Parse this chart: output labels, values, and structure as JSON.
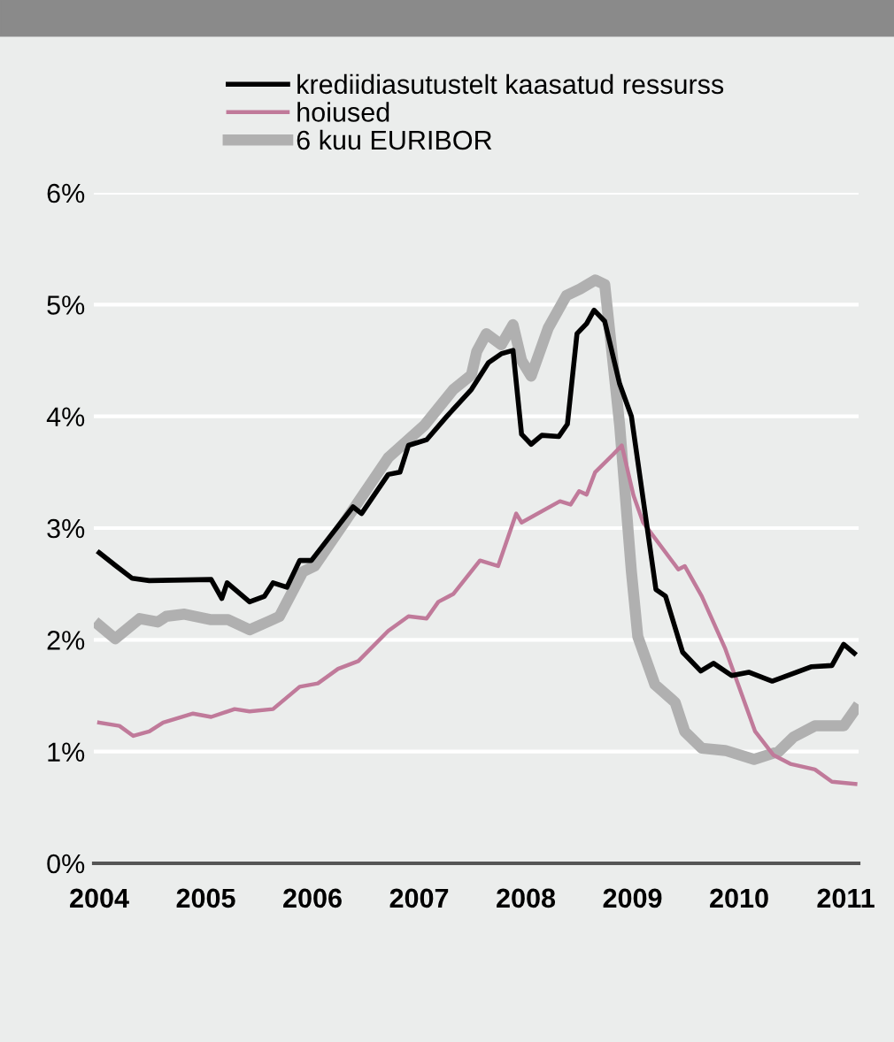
{
  "chart_data": {
    "type": "line",
    "xlim": [
      2003.95,
      2011.12
    ],
    "xticks": [
      2004,
      2005,
      2006,
      2007,
      2008,
      2009,
      2010,
      2011
    ],
    "ylim": [
      0,
      6
    ],
    "yticks": [
      {
        "value": 0,
        "label": "0%"
      },
      {
        "value": 1,
        "label": "1%"
      },
      {
        "value": 2,
        "label": "2%"
      },
      {
        "value": 3,
        "label": "3%"
      },
      {
        "value": 4,
        "label": "4%"
      },
      {
        "value": 5,
        "label": "5%"
      },
      {
        "value": 6,
        "label": "6%"
      }
    ],
    "grid": "y",
    "legend": "top",
    "marker": "none",
    "line_style": "solid",
    "series": [
      {
        "name": "krediidiasutustelt kaasatud ressurss",
        "color": "#000000",
        "x": [
          2004.0,
          2004.16,
          2004.31,
          2004.47,
          2005.05,
          2005.15,
          2005.2,
          2005.41,
          2005.55,
          2005.63,
          2005.76,
          2005.88,
          2005.99,
          2006.16,
          2006.38,
          2006.46,
          2006.71,
          2006.82,
          2006.9,
          2007.07,
          2007.26,
          2007.49,
          2007.65,
          2007.77,
          2007.88,
          2007.96,
          2008.05,
          2008.15,
          2008.31,
          2008.39,
          2008.48,
          2008.57,
          2008.64,
          2008.74,
          2008.88,
          2008.99,
          2009.22,
          2009.31,
          2009.47,
          2009.64,
          2009.76,
          2009.93,
          2010.09,
          2010.31,
          2010.54,
          2010.68,
          2010.87,
          2010.98,
          2011.08
        ],
        "values": [
          2.78,
          2.66,
          2.55,
          2.53,
          2.54,
          2.37,
          2.51,
          2.34,
          2.39,
          2.51,
          2.47,
          2.71,
          2.71,
          2.92,
          3.19,
          3.13,
          3.48,
          3.5,
          3.74,
          3.79,
          4.0,
          4.24,
          4.48,
          4.56,
          4.59,
          3.84,
          3.75,
          3.83,
          3.82,
          3.93,
          4.74,
          4.83,
          4.95,
          4.85,
          4.29,
          4.0,
          2.45,
          2.39,
          1.89,
          1.72,
          1.79,
          1.68,
          1.71,
          1.63,
          1.71,
          1.76,
          1.77,
          1.96,
          1.88
        ]
      },
      {
        "name": "hoiused",
        "color": "#c07a9a",
        "x": [
          2004.0,
          2004.19,
          2004.32,
          2004.47,
          2004.6,
          2004.88,
          2005.05,
          2005.27,
          2005.41,
          2005.63,
          2005.88,
          2006.05,
          2006.24,
          2006.43,
          2006.71,
          2006.9,
          2007.07,
          2007.18,
          2007.32,
          2007.57,
          2007.74,
          2007.91,
          2007.96,
          2008.32,
          2008.42,
          2008.5,
          2008.57,
          2008.65,
          2008.82,
          2008.9,
          2009.01,
          2009.1,
          2009.43,
          2009.49,
          2009.65,
          2009.87,
          2010.15,
          2010.32,
          2010.48,
          2010.71,
          2010.87,
          2011.09
        ],
        "values": [
          1.26,
          1.23,
          1.14,
          1.18,
          1.26,
          1.34,
          1.31,
          1.38,
          1.36,
          1.38,
          1.58,
          1.61,
          1.74,
          1.81,
          2.08,
          2.21,
          2.19,
          2.34,
          2.41,
          2.71,
          2.66,
          3.13,
          3.05,
          3.24,
          3.21,
          3.33,
          3.3,
          3.5,
          3.66,
          3.74,
          3.29,
          3.05,
          2.63,
          2.66,
          2.39,
          1.92,
          1.18,
          0.97,
          0.89,
          0.84,
          0.73,
          0.71
        ]
      },
      {
        "name": "6 kuu EURIBOR",
        "color": "#b0b0b0",
        "x": [
          2004.0,
          2004.15,
          2004.38,
          2004.55,
          2004.63,
          2004.8,
          2005.05,
          2005.21,
          2005.41,
          2005.6,
          2005.69,
          2005.91,
          2006.02,
          2006.32,
          2006.71,
          2007.05,
          2007.32,
          2007.49,
          2007.54,
          2007.63,
          2007.77,
          2007.88,
          2007.96,
          2008.05,
          2008.21,
          2008.38,
          2008.51,
          2008.65,
          2008.74,
          2008.88,
          2008.99,
          2009.05,
          2009.21,
          2009.4,
          2009.49,
          2009.65,
          2009.87,
          2010.14,
          2010.37,
          2010.51,
          2010.71,
          2010.98,
          2011.09
        ],
        "values": [
          2.13,
          2.01,
          2.19,
          2.16,
          2.21,
          2.23,
          2.18,
          2.18,
          2.09,
          2.17,
          2.21,
          2.61,
          2.66,
          3.08,
          3.63,
          3.92,
          4.24,
          4.37,
          4.58,
          4.74,
          4.64,
          4.82,
          4.5,
          4.36,
          4.79,
          5.08,
          5.14,
          5.22,
          5.18,
          3.92,
          2.61,
          2.03,
          1.6,
          1.44,
          1.18,
          1.03,
          1.01,
          0.93,
          1.0,
          1.13,
          1.23,
          1.23,
          1.38
        ]
      }
    ]
  }
}
